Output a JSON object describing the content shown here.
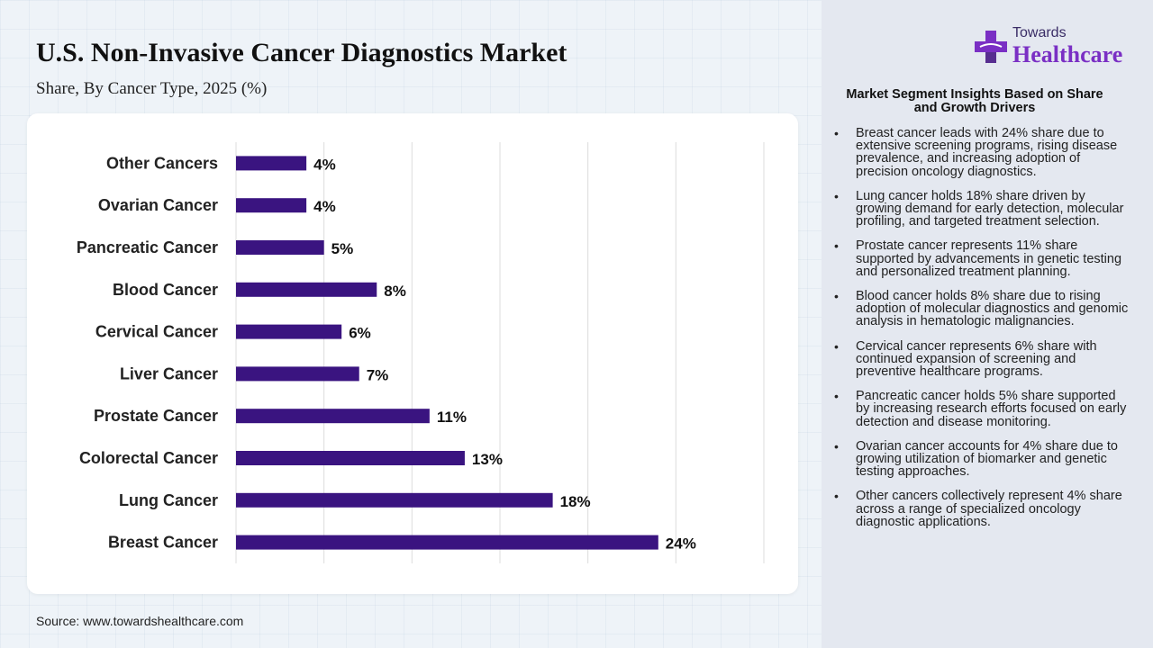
{
  "header": {
    "title": "U.S. Non-Invasive Cancer Diagnostics Market",
    "subtitle": "Share, By Cancer Type, 2025 (%)"
  },
  "logo": {
    "top_text": "Towards",
    "main_text": "Healthcare",
    "icon": "medical-cross-icon"
  },
  "source": "Source: www.towardshealthcare.com",
  "chart_data": {
    "type": "bar",
    "orientation": "horizontal",
    "categories": [
      "Other Cancers",
      "Ovarian Cancer",
      "Pancreatic Cancer",
      "Blood Cancer",
      "Cervical Cancer",
      "Liver Cancer",
      "Prostate Cancer",
      "Colorectal Cancer",
      "Lung Cancer",
      "Breast Cancer"
    ],
    "values": [
      4,
      4,
      5,
      8,
      6,
      7,
      11,
      13,
      18,
      24
    ],
    "value_labels": [
      "4%",
      "4%",
      "5%",
      "8%",
      "6%",
      "7%",
      "11%",
      "13%",
      "18%",
      "24%"
    ],
    "xlim": [
      0,
      30
    ],
    "grid": true,
    "bar_color": "#3a1480"
  },
  "insights": {
    "title": "Market Segment Insights Based on Share and Growth Drivers",
    "items": [
      "Breast cancer leads with 24% share due to extensive screening programs, rising disease prevalence, and increasing adoption of precision oncology diagnostics.",
      "Lung cancer holds 18% share driven by growing demand for early detection, molecular profiling, and targeted treatment selection.",
      "Prostate cancer represents 11% share supported by advancements in genetic testing and personalized treatment planning.",
      "Blood cancer holds 8% share due to rising adoption of molecular diagnostics and genomic analysis in hematologic malignancies.",
      "Cervical cancer represents 6% share with continued expansion of screening and preventive healthcare programs.",
      "Pancreatic cancer holds 5% share supported by increasing research efforts focused on early detection and disease monitoring.",
      "Ovarian cancer accounts for 4% share due to growing utilization of biomarker and genetic testing approaches.",
      "Other cancers collectively represent 4% share across a range of specialized oncology diagnostic applications."
    ]
  }
}
